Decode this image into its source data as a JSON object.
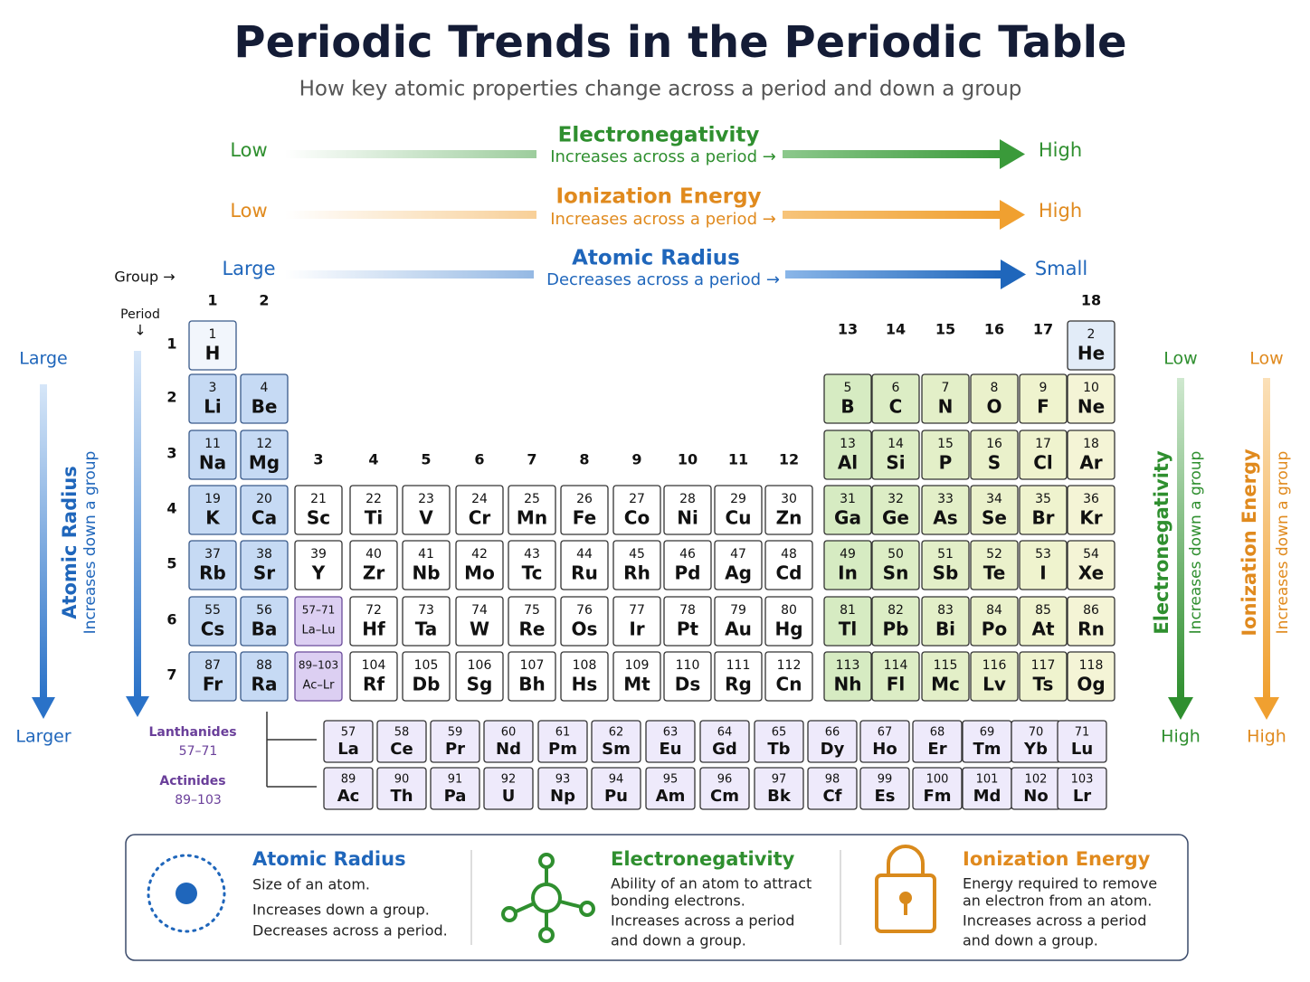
{
  "header": {
    "title": "Periodic Trends in the Periodic Table",
    "subtitle": "How key atomic properties change across a period and down a group"
  },
  "trends": [
    {
      "low": "Low",
      "name": "Electronegativity",
      "note": "Increases across a period →",
      "high": "High"
    },
    {
      "low": "Low",
      "name": "Ionization Energy",
      "note": "Increases across a period →",
      "high": "High"
    },
    {
      "low": "Large",
      "name": "Atomic Radius",
      "note": "Decreases across a period →",
      "high": "Small"
    }
  ],
  "side_trends": [
    {
      "top": "Large",
      "name": "Atomic Radius",
      "note": "Increases down a group",
      "bottom": "Larger"
    },
    {
      "top": "Low",
      "name": "Electronegativity",
      "note": "Increases down a group",
      "bottom": "High"
    },
    {
      "top": "Low",
      "name": "Ionization Energy",
      "note": "Increases down a group",
      "bottom": "High"
    }
  ],
  "periodic_table": {
    "group_label": "Group →",
    "period_label": "Period",
    "period_arrow": "↓",
    "groups": [
      1,
      2,
      3,
      4,
      5,
      6,
      7,
      8,
      9,
      10,
      11,
      12,
      13,
      14,
      15,
      16,
      17,
      18
    ],
    "periods": [
      1,
      2,
      3,
      4,
      5,
      6,
      7
    ],
    "rows": [
      [
        {
          "n": 1,
          "s": "H"
        },
        null,
        null,
        null,
        null,
        null,
        null,
        null,
        null,
        null,
        null,
        null,
        null,
        null,
        null,
        null,
        null,
        {
          "n": 2,
          "s": "He"
        }
      ],
      [
        {
          "n": 3,
          "s": "Li"
        },
        {
          "n": 4,
          "s": "Be"
        },
        null,
        null,
        null,
        null,
        null,
        null,
        null,
        null,
        null,
        null,
        {
          "n": 5,
          "s": "B"
        },
        {
          "n": 6,
          "s": "C"
        },
        {
          "n": 7,
          "s": "N"
        },
        {
          "n": 8,
          "s": "O"
        },
        {
          "n": 9,
          "s": "F"
        },
        {
          "n": 10,
          "s": "Ne"
        }
      ],
      [
        {
          "n": 11,
          "s": "Na"
        },
        {
          "n": 12,
          "s": "Mg"
        },
        null,
        null,
        null,
        null,
        null,
        null,
        null,
        null,
        null,
        null,
        {
          "n": 13,
          "s": "Al"
        },
        {
          "n": 14,
          "s": "Si"
        },
        {
          "n": 15,
          "s": "P"
        },
        {
          "n": 16,
          "s": "S"
        },
        {
          "n": 17,
          "s": "Cl"
        },
        {
          "n": 18,
          "s": "Ar"
        }
      ],
      [
        {
          "n": 19,
          "s": "K"
        },
        {
          "n": 20,
          "s": "Ca"
        },
        {
          "n": 21,
          "s": "Sc"
        },
        {
          "n": 22,
          "s": "Ti"
        },
        {
          "n": 23,
          "s": "V"
        },
        {
          "n": 24,
          "s": "Cr"
        },
        {
          "n": 25,
          "s": "Mn"
        },
        {
          "n": 26,
          "s": "Fe"
        },
        {
          "n": 27,
          "s": "Co"
        },
        {
          "n": 28,
          "s": "Ni"
        },
        {
          "n": 29,
          "s": "Cu"
        },
        {
          "n": 30,
          "s": "Zn"
        },
        {
          "n": 31,
          "s": "Ga"
        },
        {
          "n": 32,
          "s": "Ge"
        },
        {
          "n": 33,
          "s": "As"
        },
        {
          "n": 34,
          "s": "Se"
        },
        {
          "n": 35,
          "s": "Br"
        },
        {
          "n": 36,
          "s": "Kr"
        }
      ],
      [
        {
          "n": 37,
          "s": "Rb"
        },
        {
          "n": 38,
          "s": "Sr"
        },
        {
          "n": 39,
          "s": "Y"
        },
        {
          "n": 40,
          "s": "Zr"
        },
        {
          "n": 41,
          "s": "Nb"
        },
        {
          "n": 42,
          "s": "Mo"
        },
        {
          "n": 43,
          "s": "Tc"
        },
        {
          "n": 44,
          "s": "Ru"
        },
        {
          "n": 45,
          "s": "Rh"
        },
        {
          "n": 46,
          "s": "Pd"
        },
        {
          "n": 47,
          "s": "Ag"
        },
        {
          "n": 48,
          "s": "Cd"
        },
        {
          "n": 49,
          "s": "In"
        },
        {
          "n": 50,
          "s": "Sn"
        },
        {
          "n": 51,
          "s": "Sb"
        },
        {
          "n": 52,
          "s": "Te"
        },
        {
          "n": 53,
          "s": "I"
        },
        {
          "n": 54,
          "s": "Xe"
        }
      ],
      [
        {
          "n": 55,
          "s": "Cs"
        },
        {
          "n": 56,
          "s": "Ba"
        },
        {
          "n": "57–71",
          "s": "La–Lu"
        },
        {
          "n": 72,
          "s": "Hf"
        },
        {
          "n": 73,
          "s": "Ta"
        },
        {
          "n": 74,
          "s": "W"
        },
        {
          "n": 75,
          "s": "Re"
        },
        {
          "n": 76,
          "s": "Os"
        },
        {
          "n": 77,
          "s": "Ir"
        },
        {
          "n": 78,
          "s": "Pt"
        },
        {
          "n": 79,
          "s": "Au"
        },
        {
          "n": 80,
          "s": "Hg"
        },
        {
          "n": 81,
          "s": "Tl"
        },
        {
          "n": 82,
          "s": "Pb"
        },
        {
          "n": 83,
          "s": "Bi"
        },
        {
          "n": 84,
          "s": "Po"
        },
        {
          "n": 85,
          "s": "At"
        },
        {
          "n": 86,
          "s": "Rn"
        }
      ],
      [
        {
          "n": 87,
          "s": "Fr"
        },
        {
          "n": 88,
          "s": "Ra"
        },
        {
          "n": "89–103",
          "s": "Ac–Lr"
        },
        {
          "n": 104,
          "s": "Rf"
        },
        {
          "n": 105,
          "s": "Db"
        },
        {
          "n": 106,
          "s": "Sg"
        },
        {
          "n": 107,
          "s": "Bh"
        },
        {
          "n": 108,
          "s": "Hs"
        },
        {
          "n": 109,
          "s": "Mt"
        },
        {
          "n": 110,
          "s": "Ds"
        },
        {
          "n": 111,
          "s": "Rg"
        },
        {
          "n": 112,
          "s": "Cn"
        },
        {
          "n": 113,
          "s": "Nh"
        },
        {
          "n": 114,
          "s": "Fl"
        },
        {
          "n": 115,
          "s": "Mc"
        },
        {
          "n": 116,
          "s": "Lv"
        },
        {
          "n": 117,
          "s": "Ts"
        },
        {
          "n": 118,
          "s": "Og"
        }
      ]
    ]
  },
  "f_block": [
    {
      "label": "Lanthanides",
      "range": "57–71",
      "elements": [
        {
          "n": 57,
          "s": "La"
        },
        {
          "n": 58,
          "s": "Ce"
        },
        {
          "n": 59,
          "s": "Pr"
        },
        {
          "n": 60,
          "s": "Nd"
        },
        {
          "n": 61,
          "s": "Pm"
        },
        {
          "n": 62,
          "s": "Sm"
        },
        {
          "n": 63,
          "s": "Eu"
        },
        {
          "n": 64,
          "s": "Gd"
        },
        {
          "n": 65,
          "s": "Tb"
        },
        {
          "n": 66,
          "s": "Dy"
        },
        {
          "n": 67,
          "s": "Ho"
        },
        {
          "n": 68,
          "s": "Er"
        },
        {
          "n": 69,
          "s": "Tm"
        },
        {
          "n": 70,
          "s": "Yb"
        },
        {
          "n": 71,
          "s": "Lu"
        }
      ]
    },
    {
      "label": "Actinides",
      "range": "89–103",
      "elements": [
        {
          "n": 89,
          "s": "Ac"
        },
        {
          "n": 90,
          "s": "Th"
        },
        {
          "n": 91,
          "s": "Pa"
        },
        {
          "n": 92,
          "s": "U"
        },
        {
          "n": 93,
          "s": "Np"
        },
        {
          "n": 94,
          "s": "Pu"
        },
        {
          "n": 95,
          "s": "Am"
        },
        {
          "n": 96,
          "s": "Cm"
        },
        {
          "n": 97,
          "s": "Bk"
        },
        {
          "n": 98,
          "s": "Cf"
        },
        {
          "n": 99,
          "s": "Es"
        },
        {
          "n": 100,
          "s": "Fm"
        },
        {
          "n": 101,
          "s": "Md"
        },
        {
          "n": 102,
          "s": "No"
        },
        {
          "n": 103,
          "s": "Lr"
        }
      ]
    }
  ],
  "legend": [
    {
      "title": "Atomic Radius",
      "lines": [
        "Size of an atom.",
        "Increases down a group.",
        "Decreases across a period."
      ]
    },
    {
      "title": "Electronegativity",
      "lines": [
        "Ability of an atom to attract",
        "bonding electrons.",
        "Increases across a period",
        "and down a group."
      ]
    },
    {
      "title": "Ionization Energy",
      "lines": [
        "Energy required to remove",
        "an electron from an atom.",
        "Increases across a period",
        "and down a group."
      ]
    }
  ]
}
